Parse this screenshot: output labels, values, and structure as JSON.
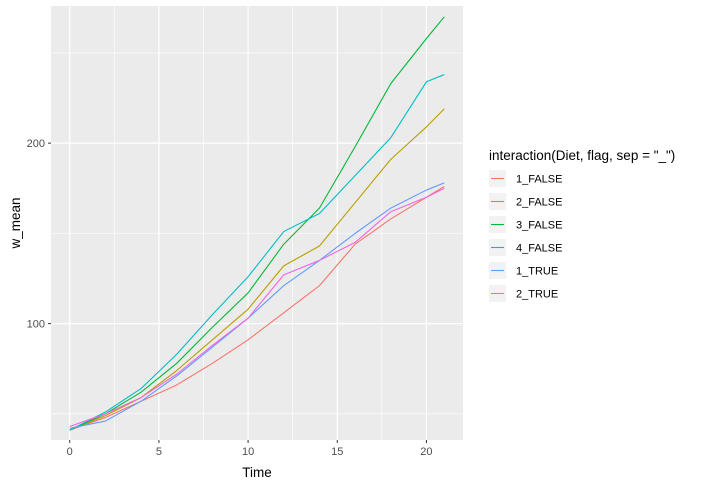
{
  "chart_data": {
    "type": "line",
    "xlabel": "Time",
    "ylabel": "w_mean",
    "xlim": [
      -1.05,
      22.05
    ],
    "ylim": [
      35.5,
      276
    ],
    "x_ticks": [
      0,
      5,
      10,
      15,
      20
    ],
    "x_tick_labels": [
      "0",
      "5",
      "10",
      "15",
      "20"
    ],
    "y_ticks": [
      100,
      200
    ],
    "y_tick_labels": [
      "100",
      "200"
    ],
    "grid": true,
    "legend_title": "interaction(Diet, flag, sep = \"_\")",
    "legend_position": "right",
    "series": [
      {
        "name": "1_FALSE",
        "color": "#F8766D",
        "x": [
          0,
          2,
          4,
          6,
          8,
          10,
          12,
          14,
          16,
          18,
          20,
          21
        ],
        "values": [
          41,
          48,
          57,
          66,
          78,
          91,
          106,
          121,
          144,
          158,
          170,
          176
        ]
      },
      {
        "name": "2_FALSE",
        "color": "#B79F00",
        "x": [
          0,
          2,
          4,
          6,
          8,
          10,
          12,
          14,
          16,
          18,
          20,
          21
        ],
        "values": [
          41,
          49,
          59,
          74,
          91,
          108,
          132,
          143,
          167,
          191,
          209,
          219
        ]
      },
      {
        "name": "3_FALSE",
        "color": "#00BA38",
        "x": [
          0,
          2,
          4,
          6,
          8,
          10,
          12,
          14,
          16,
          18,
          20,
          21
        ],
        "values": [
          41,
          50,
          62,
          78,
          98,
          117,
          144,
          164,
          198,
          233,
          258,
          270
        ]
      },
      {
        "name": "4_FALSE",
        "color": "#00BFC4",
        "x": [
          0,
          2,
          4,
          6,
          8,
          10,
          12,
          14,
          16,
          18,
          20,
          21
        ],
        "values": [
          41,
          51,
          64,
          83,
          105,
          126,
          151,
          161,
          182,
          203,
          234,
          238
        ]
      },
      {
        "name": "1_TRUE",
        "color": "#619CFF",
        "x": [
          0,
          2,
          4,
          6,
          8,
          10,
          12,
          14,
          16,
          18,
          20,
          21
        ],
        "values": [
          42,
          46,
          57,
          71,
          87,
          103,
          121,
          135,
          150,
          164,
          174,
          178
        ]
      },
      {
        "name": "2_TRUE",
        "color": "#F564E3",
        "x": [
          0,
          2,
          4,
          6,
          8,
          10,
          12,
          14,
          16,
          18,
          20,
          21
        ],
        "values": [
          43,
          50,
          59,
          72,
          88,
          103,
          127,
          135,
          145,
          162,
          170,
          175
        ]
      }
    ]
  }
}
